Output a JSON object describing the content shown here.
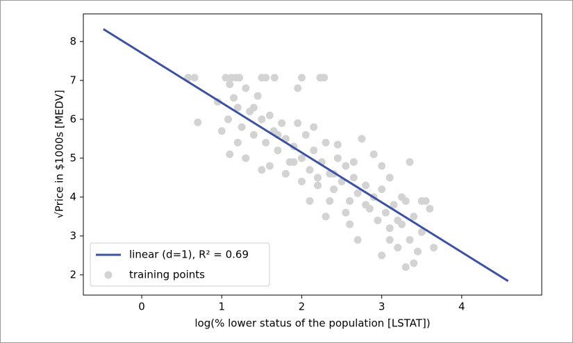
{
  "chart_data": {
    "type": "scatter",
    "xlabel": "log(% lower status of the population [LSTAT])",
    "ylabel": "√Price in $1000s [MEDV]",
    "xlim": [
      -0.73,
      5.0
    ],
    "ylim": [
      1.48,
      8.71
    ],
    "xticks": [
      0,
      1,
      2,
      3,
      4
    ],
    "yticks": [
      2,
      3,
      4,
      5,
      6,
      7,
      8
    ],
    "legend": "lower left",
    "series": [
      {
        "name": "linear (d=1), R² = 0.69",
        "type": "line",
        "color": "#3b52a3",
        "x": [
          -0.48,
          4.58
        ],
        "values": [
          8.32,
          1.84
        ]
      },
      {
        "name": "training points",
        "type": "scatter",
        "color": "#d3d3d3",
        "x": [
          0.58,
          0.66,
          1.05,
          1.12,
          1.18,
          1.22,
          1.5,
          1.55,
          1.66,
          2.0,
          2.23,
          2.28,
          0.7,
          0.95,
          1.08,
          1.1,
          1.15,
          1.2,
          1.25,
          1.3,
          1.35,
          1.4,
          1.45,
          1.5,
          1.55,
          1.6,
          1.65,
          1.7,
          1.75,
          1.8,
          1.85,
          1.9,
          1.95,
          2.0,
          2.05,
          2.1,
          2.15,
          2.2,
          2.25,
          2.3,
          2.35,
          2.4,
          2.45,
          2.5,
          2.55,
          2.6,
          2.65,
          2.7,
          2.75,
          2.8,
          2.85,
          2.9,
          2.95,
          3.0,
          3.05,
          3.1,
          3.15,
          3.2,
          3.25,
          3.3,
          3.35,
          3.4,
          3.45,
          3.5,
          3.55,
          3.6,
          3.65,
          1.1,
          1.3,
          1.5,
          1.2,
          1.8,
          2.0,
          2.1,
          2.3,
          2.6,
          2.7,
          3.0,
          3.1,
          3.3,
          3.4,
          2.45,
          2.9,
          3.0,
          3.1,
          3.35,
          3.5,
          1.6,
          1.9,
          2.2,
          2.4,
          2.8,
          3.2,
          1.7,
          1.0,
          2.55,
          2.65,
          2.35,
          3.25,
          1.95,
          2.15,
          1.4
        ],
        "values": [
          7.07,
          7.07,
          7.07,
          7.07,
          7.07,
          7.07,
          7.07,
          7.07,
          7.07,
          7.07,
          7.07,
          7.07,
          5.92,
          6.45,
          6.0,
          6.9,
          6.55,
          6.3,
          5.8,
          6.8,
          6.2,
          5.6,
          6.6,
          6.0,
          5.4,
          6.1,
          5.7,
          5.2,
          5.9,
          5.5,
          4.9,
          5.3,
          6.8,
          5.0,
          5.6,
          4.7,
          5.2,
          4.5,
          4.9,
          5.4,
          4.6,
          4.2,
          5.0,
          4.4,
          4.8,
          3.9,
          4.5,
          4.1,
          5.5,
          4.3,
          3.7,
          4.0,
          3.4,
          4.2,
          3.6,
          3.2,
          3.8,
          2.7,
          3.3,
          3.9,
          2.9,
          3.5,
          2.6,
          3.1,
          3.9,
          3.7,
          2.7,
          5.1,
          5.0,
          4.7,
          5.4,
          4.6,
          4.4,
          3.9,
          3.5,
          3.3,
          2.9,
          2.5,
          2.9,
          2.2,
          2.3,
          5.35,
          5.1,
          4.8,
          4.5,
          4.9,
          3.9,
          4.8,
          4.9,
          4.3,
          4.6,
          3.8,
          3.4,
          5.6,
          5.7,
          3.6,
          4.9,
          3.9,
          4.0,
          5.9,
          5.8,
          6.3
        ]
      }
    ]
  }
}
